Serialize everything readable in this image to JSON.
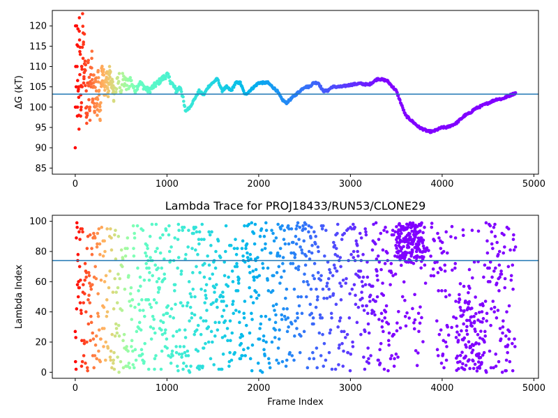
{
  "chart_data": [
    {
      "type": "scatter",
      "title": "",
      "xlabel": "",
      "ylabel": "ΔG (kT)",
      "xlim": [
        -250,
        5050
      ],
      "ylim": [
        83.5,
        123.8
      ],
      "xticks": [
        0,
        1000,
        2000,
        3000,
        4000,
        5000
      ],
      "yticks": [
        85,
        90,
        95,
        100,
        105,
        110,
        115,
        120
      ],
      "grid": false,
      "color_scale": "rainbow, red at early frames to violet at late frames",
      "hline": {
        "y": 103.2,
        "color": "#1f77b4"
      },
      "series": [
        {
          "values_description": "running estimate per frame",
          "points": [
            [
              0,
              90
            ],
            [
              2,
              100
            ],
            [
              3,
              120
            ],
            [
              5,
              110
            ],
            [
              8,
              100
            ],
            [
              10,
              105
            ],
            [
              15,
              120
            ],
            [
              20,
              110
            ],
            [
              25,
              100
            ],
            [
              30,
              115
            ],
            [
              35,
              105
            ],
            [
              40,
              98
            ],
            [
              45,
              122
            ],
            [
              50,
              108
            ],
            [
              55,
              113
            ],
            [
              60,
              103
            ],
            [
              65,
              100
            ],
            [
              70,
              110
            ],
            [
              75,
              105
            ],
            [
              80,
              123
            ],
            [
              85,
              112
            ],
            [
              90,
              116
            ],
            [
              95,
              107
            ],
            [
              100,
              118
            ],
            [
              110,
              109
            ],
            [
              120,
              104
            ],
            [
              130,
              98
            ],
            [
              140,
              111
            ],
            [
              150,
              106
            ],
            [
              160,
              100
            ],
            [
              170,
              108
            ],
            [
              180,
              112
            ],
            [
              190,
              102
            ],
            [
              200,
              106
            ],
            [
              210,
              99
            ],
            [
              220,
              107
            ],
            [
              230,
              104
            ],
            [
              240,
              98
            ],
            [
              250,
              109
            ],
            [
              260,
              103
            ],
            [
              270,
              97
            ],
            [
              280,
              106
            ],
            [
              300,
              108
            ],
            [
              320,
              104
            ],
            [
              340,
              107
            ],
            [
              360,
              105
            ],
            [
              380,
              109
            ],
            [
              400,
              106
            ],
            [
              420,
              103
            ],
            [
              450,
              105
            ],
            [
              480,
              107
            ],
            [
              500,
              104
            ],
            [
              520,
              107
            ],
            [
              560,
              105
            ],
            [
              600,
              107
            ],
            [
              650,
              104
            ],
            [
              700,
              106
            ],
            [
              750,
              105
            ],
            [
              800,
              104
            ],
            [
              850,
              105
            ],
            [
              900,
              106
            ],
            [
              950,
              107
            ],
            [
              1000,
              108
            ],
            [
              1050,
              106
            ],
            [
              1100,
              104
            ],
            [
              1150,
              105
            ],
            [
              1200,
              99
            ],
            [
              1250,
              100
            ],
            [
              1300,
              102
            ],
            [
              1350,
              104
            ],
            [
              1400,
              103
            ],
            [
              1450,
              105
            ],
            [
              1500,
              106
            ],
            [
              1550,
              107
            ],
            [
              1600,
              104
            ],
            [
              1650,
              105
            ],
            [
              1700,
              104
            ],
            [
              1750,
              106
            ],
            [
              1800,
              106
            ],
            [
              1850,
              103
            ],
            [
              1900,
              104
            ],
            [
              1950,
              105
            ],
            [
              2000,
              106
            ],
            [
              2050,
              106
            ],
            [
              2100,
              106
            ],
            [
              2150,
              105
            ],
            [
              2200,
              104
            ],
            [
              2250,
              102
            ],
            [
              2300,
              101
            ],
            [
              2350,
              102
            ],
            [
              2400,
              103
            ],
            [
              2450,
              104
            ],
            [
              2500,
              105
            ],
            [
              2550,
              105
            ],
            [
              2600,
              106
            ],
            [
              2650,
              106
            ],
            [
              2700,
              104
            ],
            [
              2750,
              104
            ],
            [
              2800,
              105
            ],
            [
              2850,
              105
            ],
            [
              2900,
              105
            ],
            [
              3000,
              105.5
            ],
            [
              3100,
              105.8
            ],
            [
              3200,
              105.5
            ],
            [
              3300,
              107
            ],
            [
              3400,
              106.5
            ],
            [
              3500,
              104
            ],
            [
              3550,
              101
            ],
            [
              3600,
              98
            ],
            [
              3650,
              97
            ],
            [
              3700,
              96
            ],
            [
              3750,
              95
            ],
            [
              3800,
              94.5
            ],
            [
              3850,
              94
            ],
            [
              3900,
              94
            ],
            [
              3950,
              94.5
            ],
            [
              4000,
              95
            ],
            [
              4050,
              95
            ],
            [
              4100,
              95.5
            ],
            [
              4150,
              96
            ],
            [
              4200,
              97
            ],
            [
              4250,
              98
            ],
            [
              4300,
              98.5
            ],
            [
              4350,
              99.5
            ],
            [
              4400,
              100
            ],
            [
              4450,
              100.5
            ],
            [
              4500,
              101
            ],
            [
              4550,
              101.5
            ],
            [
              4600,
              102
            ],
            [
              4650,
              102
            ],
            [
              4700,
              102.5
            ],
            [
              4750,
              103
            ],
            [
              4800,
              103.5
            ]
          ]
        }
      ]
    },
    {
      "type": "scatter",
      "title": "Lambda Trace for PROJ18433/RUN53/CLONE29",
      "xlabel": "Frame Index",
      "ylabel": "Lambda Index",
      "xlim": [
        -250,
        5050
      ],
      "ylim": [
        -4,
        104
      ],
      "xticks": [
        0,
        1000,
        2000,
        3000,
        4000,
        5000
      ],
      "yticks": [
        0,
        20,
        40,
        60,
        80,
        100
      ],
      "grid": false,
      "color_scale": "rainbow, red at early frames to violet at late frames",
      "hline": {
        "y": 74,
        "color": "#1f77b4"
      },
      "series": [
        {
          "values_description": "lambda index visited per frame, spread over 0-99 across frames 0-4800",
          "frame_range": [
            0,
            4800
          ],
          "lambda_range": [
            0,
            99
          ],
          "dense_regions": [
            {
              "frames": [
                3500,
                3800
              ],
              "lambda": [
                75,
                99
              ]
            },
            {
              "frames": [
                3950,
                4050
              ],
              "lambda": [
                0,
                75
              ]
            },
            {
              "frames": [
                4150,
                4450
              ],
              "lambda": [
                0,
                50
              ]
            },
            {
              "frames": [
                4500,
                4800
              ],
              "lambda": [
                0,
                99
              ]
            }
          ],
          "empty_region": {
            "frames": [
              3820,
              3920
            ],
            "lambda": [
              0,
              60
            ]
          }
        }
      ]
    }
  ]
}
